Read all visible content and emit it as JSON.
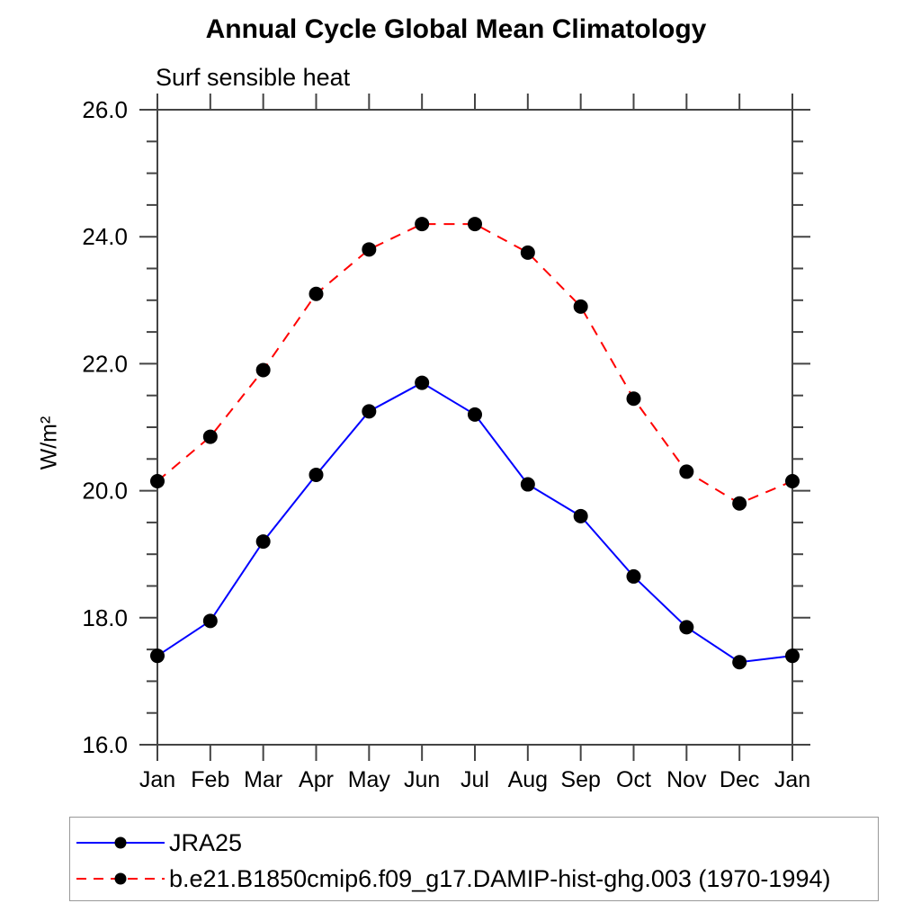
{
  "chart_data": {
    "type": "line",
    "title": "Annual Cycle Global Mean Climatology",
    "subtitle": "Surf sensible heat",
    "xlabel": "",
    "ylabel": "W/m²",
    "categories": [
      "Jan",
      "Feb",
      "Mar",
      "Apr",
      "May",
      "Jun",
      "Jul",
      "Aug",
      "Sep",
      "Oct",
      "Nov",
      "Dec",
      "Jan"
    ],
    "ylim": [
      16.0,
      26.0
    ],
    "y_major_ticks": [
      16.0,
      18.0,
      20.0,
      22.0,
      24.0,
      26.0
    ],
    "y_major_tick_labels": [
      "16.0",
      "18.0",
      "20.0",
      "22.0",
      "24.0",
      "26.0"
    ],
    "y_minor_step": 0.5,
    "grid": false,
    "legend_position": "bottom-left-boxed",
    "series": [
      {
        "name": "JRA25",
        "color": "#0000ff",
        "line_style": "solid",
        "marker": "filled-circle",
        "marker_color": "#000000",
        "values": [
          17.4,
          17.95,
          19.2,
          20.25,
          21.25,
          21.7,
          21.2,
          20.1,
          19.6,
          18.65,
          17.85,
          17.3,
          17.4
        ]
      },
      {
        "name": "b.e21.B1850cmip6.f09_g17.DAMIP-hist-ghg.003 (1970-1994)",
        "color": "#ff0000",
        "line_style": "dashed",
        "marker": "filled-circle",
        "marker_color": "#000000",
        "values": [
          20.15,
          20.85,
          21.9,
          23.1,
          23.8,
          24.2,
          24.2,
          23.75,
          22.9,
          21.45,
          20.3,
          19.8,
          20.15
        ]
      }
    ]
  },
  "colors": {
    "axis": "#444444",
    "text": "#000000",
    "legend_border": "#999999"
  }
}
